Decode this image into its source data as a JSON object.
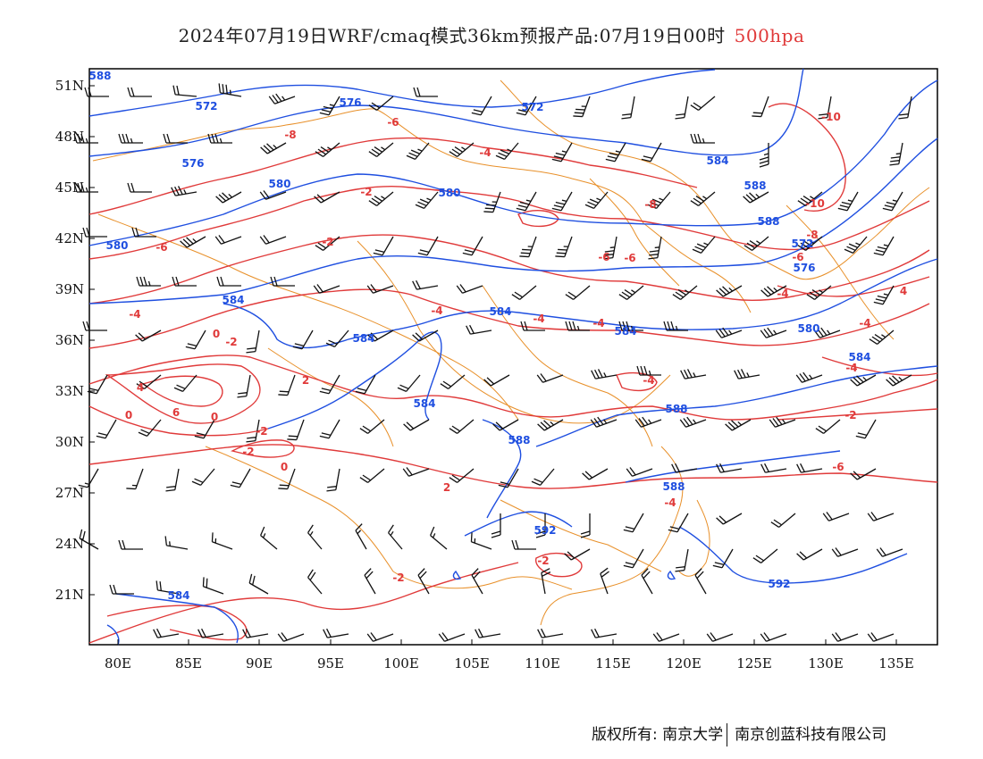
{
  "title": {
    "main": "2024年07月19日WRF/cmaq模式36km预报产品:07月19日00时",
    "level": "500hpa"
  },
  "colors": {
    "height_contour": "#1f4fe0",
    "temperature_contour": "#e03a3a",
    "boundary": "#e8902a",
    "wind_barb": "#111111"
  },
  "axes": {
    "lat_labels": [
      "51N",
      "48N",
      "45N",
      "42N",
      "39N",
      "36N",
      "33N",
      "30N",
      "27N",
      "24N",
      "21N"
    ],
    "lon_labels": [
      "80E",
      "85E",
      "90E",
      "95E",
      "100E",
      "105E",
      "110E",
      "115E",
      "120E",
      "125E",
      "130E",
      "135E"
    ]
  },
  "height_labels": [
    "588",
    "572",
    "576",
    "572",
    "576",
    "580",
    "580",
    "580",
    "584",
    "584",
    "584",
    "584",
    "584",
    "588",
    "588",
    "584",
    "588",
    "588",
    "572",
    "576",
    "580",
    "584",
    "588",
    "592",
    "592",
    "584"
  ],
  "temperature_labels": [
    "-6",
    "-8",
    "-6",
    "-4",
    "-2",
    "-6",
    "-8",
    "-10",
    "-10",
    "-8",
    "-6",
    "-4",
    "4",
    "-4",
    "-4",
    "-2",
    "-6",
    "-4",
    "-4",
    "-4",
    "-4",
    "-2",
    "-2",
    "0",
    "2",
    "4",
    "6",
    "0",
    "-2",
    "0",
    "-2",
    "-4",
    "-2",
    "0",
    "2",
    "-6",
    "-4",
    "-2"
  ],
  "footer": {
    "left": "版权所有: 南京大学",
    "right": "南京创蓝科技有限公司"
  }
}
